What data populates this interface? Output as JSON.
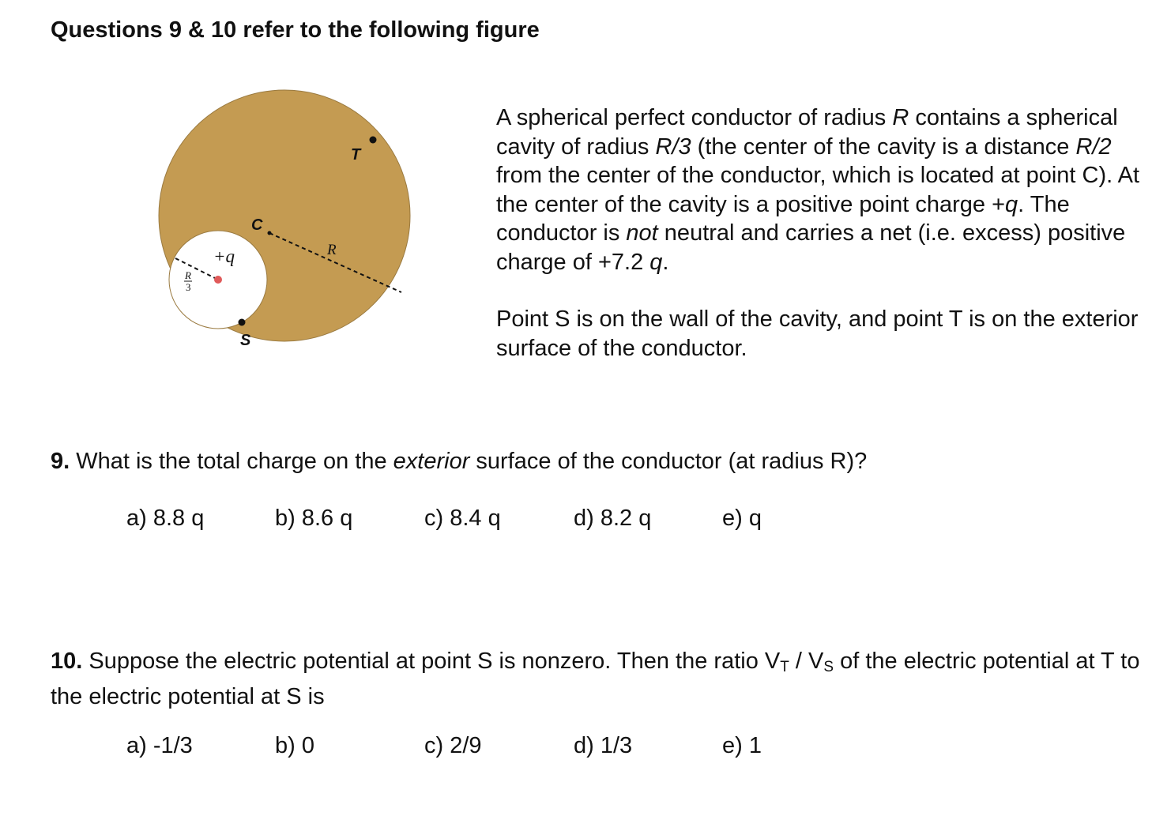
{
  "heading": "Questions 9 & 10 refer to the following figure",
  "figure": {
    "label_T": "T",
    "label_C": "C",
    "label_R": "R",
    "label_q": "+q",
    "label_R3_num": "R",
    "label_R3_den": "3",
    "label_S": "S",
    "colors": {
      "conductor": "#C49B52",
      "cavity": "#ffffff",
      "charge": "#E05A5A"
    }
  },
  "description": {
    "p1": {
      "t1": "A spherical perfect conductor of radius ",
      "i1": "R",
      "t2": " contains a spherical cavity of radius ",
      "i2": "R/3",
      "t3": " (the center of the cavity is a distance ",
      "i3": "R/2",
      "t4": " from the center of the conductor, which is located at point C). At the center of the cavity is a positive point charge +",
      "i4": "q",
      "t5": ".  The conductor is ",
      "i5": "not",
      "t6": " neutral and carries a net (i.e. excess) positive charge of +7.2 ",
      "i6": "q",
      "t7": "."
    },
    "p2": "Point S is on the wall of the cavity, and point T is on the exterior surface of the conductor."
  },
  "q9": {
    "number": "9.",
    "t1": " What is the total charge on the ",
    "i1": "exterior",
    "t2": " surface of the conductor (at radius R)?",
    "choices": [
      "a) 8.8 q",
      "b) 8.6 q",
      "c) 8.4 q",
      "d) 8.2 q",
      "e) q"
    ]
  },
  "q10": {
    "number": "10.",
    "t1": "  Suppose the electric potential at point S is nonzero. Then the ratio V",
    "sub1": "T",
    "t2": " / V",
    "sub2": "S",
    "t3": " of the electric potential at T to the electric potential at S is",
    "choices": [
      "a) -1/3",
      "b) 0",
      "c) 2/9",
      "d) 1/3",
      "e) 1"
    ]
  }
}
